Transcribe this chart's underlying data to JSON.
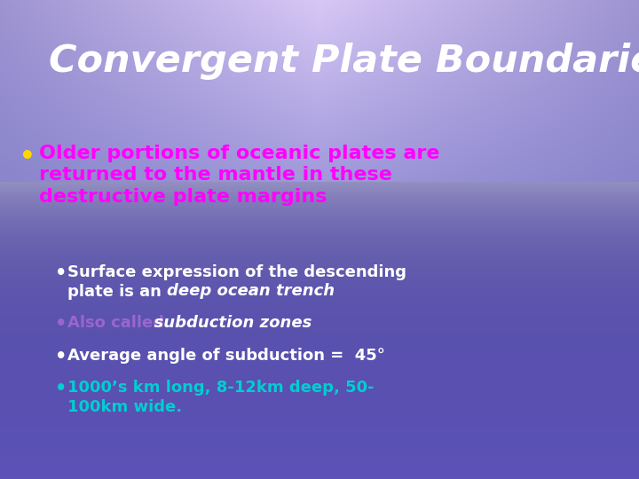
{
  "title": "Convergent Plate Boundaries",
  "title_color": "#FFFFFF",
  "title_fontsize": 31,
  "bullet1_dot_color": "#FFD700",
  "bullet1_color": "#FF00FF",
  "bullet1_text": "Older portions of oceanic plates are\nreturned to the mantle in these\ndestructive plate margins",
  "sb1_dot_color": "#FFFFFF",
  "sb1_text": "Surface expression of the descending\nplate is an ",
  "sb1_italic": "deep ocean trench",
  "sb1_color": "#FFFFFF",
  "sb2_dot_color": "#9966CC",
  "sb2_text": "Also called",
  "sb2_italic": "  subduction zones",
  "sb2_color": "#9966CC",
  "sb3_dot_color": "#FFFFFF",
  "sb3_text": "Average angle of subduction =  45°",
  "sb3_color": "#FFFFFF",
  "sb4_dot_color": "#00CED1",
  "sb4_text": "1000’s km long, 8-12km deep, 50-\n100km wide.",
  "sb4_color": "#00CED1"
}
